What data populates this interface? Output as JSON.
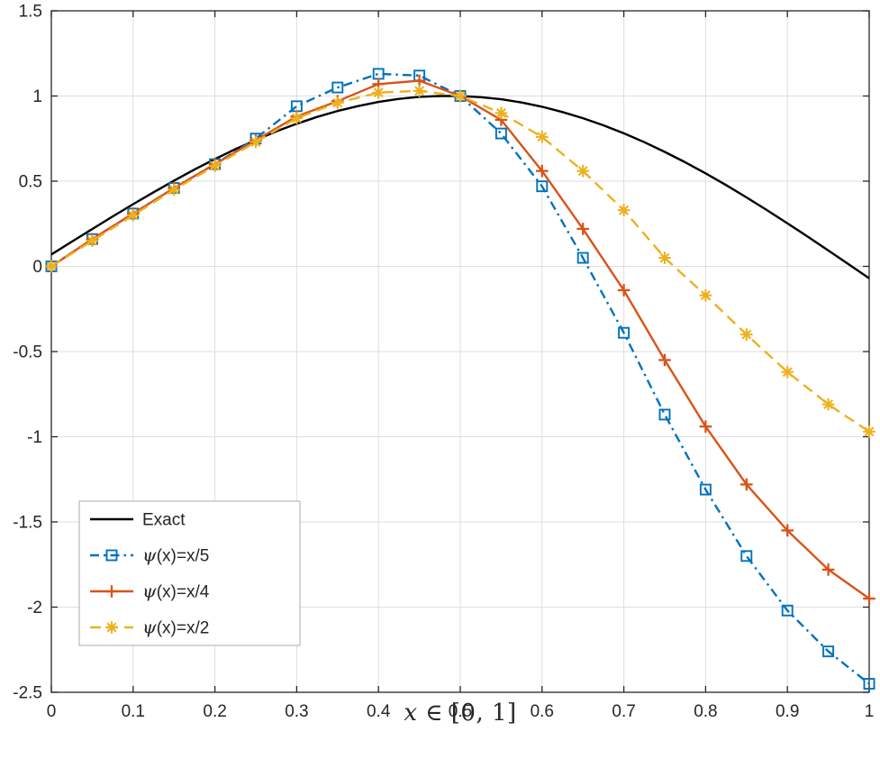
{
  "chart_data": {
    "type": "line",
    "title": "",
    "xlabel": "x ∈ [0, 1]",
    "ylabel": "",
    "xlim": [
      0,
      1
    ],
    "ylim": [
      -2.5,
      1.5
    ],
    "grid": true,
    "legend_position": "southwest",
    "colors": {
      "grid": "#dedede",
      "axis": "#262626",
      "background": "#ffffff"
    },
    "xticks": {
      "values": [
        0,
        0.1,
        0.2,
        0.3,
        0.4,
        0.5,
        0.6,
        0.7,
        0.8,
        0.9,
        1
      ],
      "labels": [
        "0",
        "0.1",
        "0.2",
        "0.3",
        "0.4",
        "0.5",
        "0.6",
        "0.7",
        "0.8",
        "0.9",
        "1"
      ]
    },
    "yticks": {
      "values": [
        -2.5,
        -2,
        -1.5,
        -1,
        -0.5,
        0,
        0.5,
        1,
        1.5
      ],
      "labels": [
        "-2.5",
        "-2",
        "-1.5",
        "-1",
        "-0.5",
        "0",
        "0.5",
        "1",
        "1.5"
      ]
    },
    "series": [
      {
        "name": "Exact",
        "color": "#000000",
        "line_style": "solid",
        "line_width": 2.4,
        "marker": "none",
        "x": [
          0,
          0.025,
          0.05,
          0.075,
          0.1,
          0.125,
          0.15,
          0.175,
          0.2,
          0.225,
          0.25,
          0.275,
          0.3,
          0.325,
          0.35,
          0.375,
          0.4,
          0.425,
          0.45,
          0.475,
          0.5,
          0.525,
          0.55,
          0.575,
          0.6,
          0.625,
          0.65,
          0.675,
          0.7,
          0.725,
          0.75,
          0.775,
          0.8,
          0.825,
          0.85,
          0.875,
          0.9,
          0.925,
          0.95,
          0.975,
          1
        ],
        "y": [
          0.07,
          0.145,
          0.219,
          0.293,
          0.365,
          0.435,
          0.503,
          0.568,
          0.63,
          0.688,
          0.742,
          0.792,
          0.837,
          0.877,
          0.912,
          0.941,
          0.965,
          0.983,
          0.995,
          1.0,
          1.0,
          0.993,
          0.981,
          0.962,
          0.937,
          0.906,
          0.87,
          0.828,
          0.781,
          0.729,
          0.672,
          0.611,
          0.546,
          0.477,
          0.405,
          0.33,
          0.253,
          0.174,
          0.093,
          0.012,
          -0.07
        ]
      },
      {
        "name": "ψ(x)=x/5",
        "color": "#0072BD",
        "line_style": "dash-dot",
        "line_width": 2.4,
        "marker": "square",
        "x": [
          0,
          0.05,
          0.1,
          0.15,
          0.2,
          0.25,
          0.3,
          0.35,
          0.4,
          0.45,
          0.5,
          0.55,
          0.6,
          0.65,
          0.7,
          0.75,
          0.8,
          0.85,
          0.9,
          0.95,
          1
        ],
        "y": [
          0,
          0.16,
          0.31,
          0.46,
          0.6,
          0.75,
          0.94,
          1.05,
          1.13,
          1.12,
          1.0,
          0.78,
          0.47,
          0.05,
          -0.39,
          -0.87,
          -1.31,
          -1.7,
          -2.02,
          -2.26,
          -2.45
        ]
      },
      {
        "name": "ψ(x)=x/4",
        "color": "#D95319",
        "line_style": "solid",
        "line_width": 2.4,
        "marker": "plus",
        "x": [
          0,
          0.05,
          0.1,
          0.15,
          0.2,
          0.25,
          0.3,
          0.35,
          0.4,
          0.45,
          0.5,
          0.55,
          0.6,
          0.65,
          0.7,
          0.75,
          0.8,
          0.85,
          0.9,
          0.95,
          1
        ],
        "y": [
          0,
          0.16,
          0.31,
          0.46,
          0.6,
          0.74,
          0.88,
          0.97,
          1.07,
          1.09,
          1.0,
          0.86,
          0.56,
          0.22,
          -0.14,
          -0.55,
          -0.94,
          -1.28,
          -1.55,
          -1.78,
          -1.95
        ]
      },
      {
        "name": "ψ(x)=x/2",
        "color": "#EDB120",
        "line_style": "dashed",
        "line_width": 2.4,
        "marker": "asterisk",
        "x": [
          0,
          0.05,
          0.1,
          0.15,
          0.2,
          0.25,
          0.3,
          0.35,
          0.4,
          0.45,
          0.5,
          0.55,
          0.6,
          0.65,
          0.7,
          0.75,
          0.8,
          0.85,
          0.9,
          0.95,
          1
        ],
        "y": [
          0,
          0.15,
          0.3,
          0.45,
          0.59,
          0.73,
          0.87,
          0.96,
          1.02,
          1.03,
          1.0,
          0.9,
          0.76,
          0.56,
          0.33,
          0.05,
          -0.17,
          -0.4,
          -0.62,
          -0.81,
          -0.97
        ]
      }
    ]
  }
}
